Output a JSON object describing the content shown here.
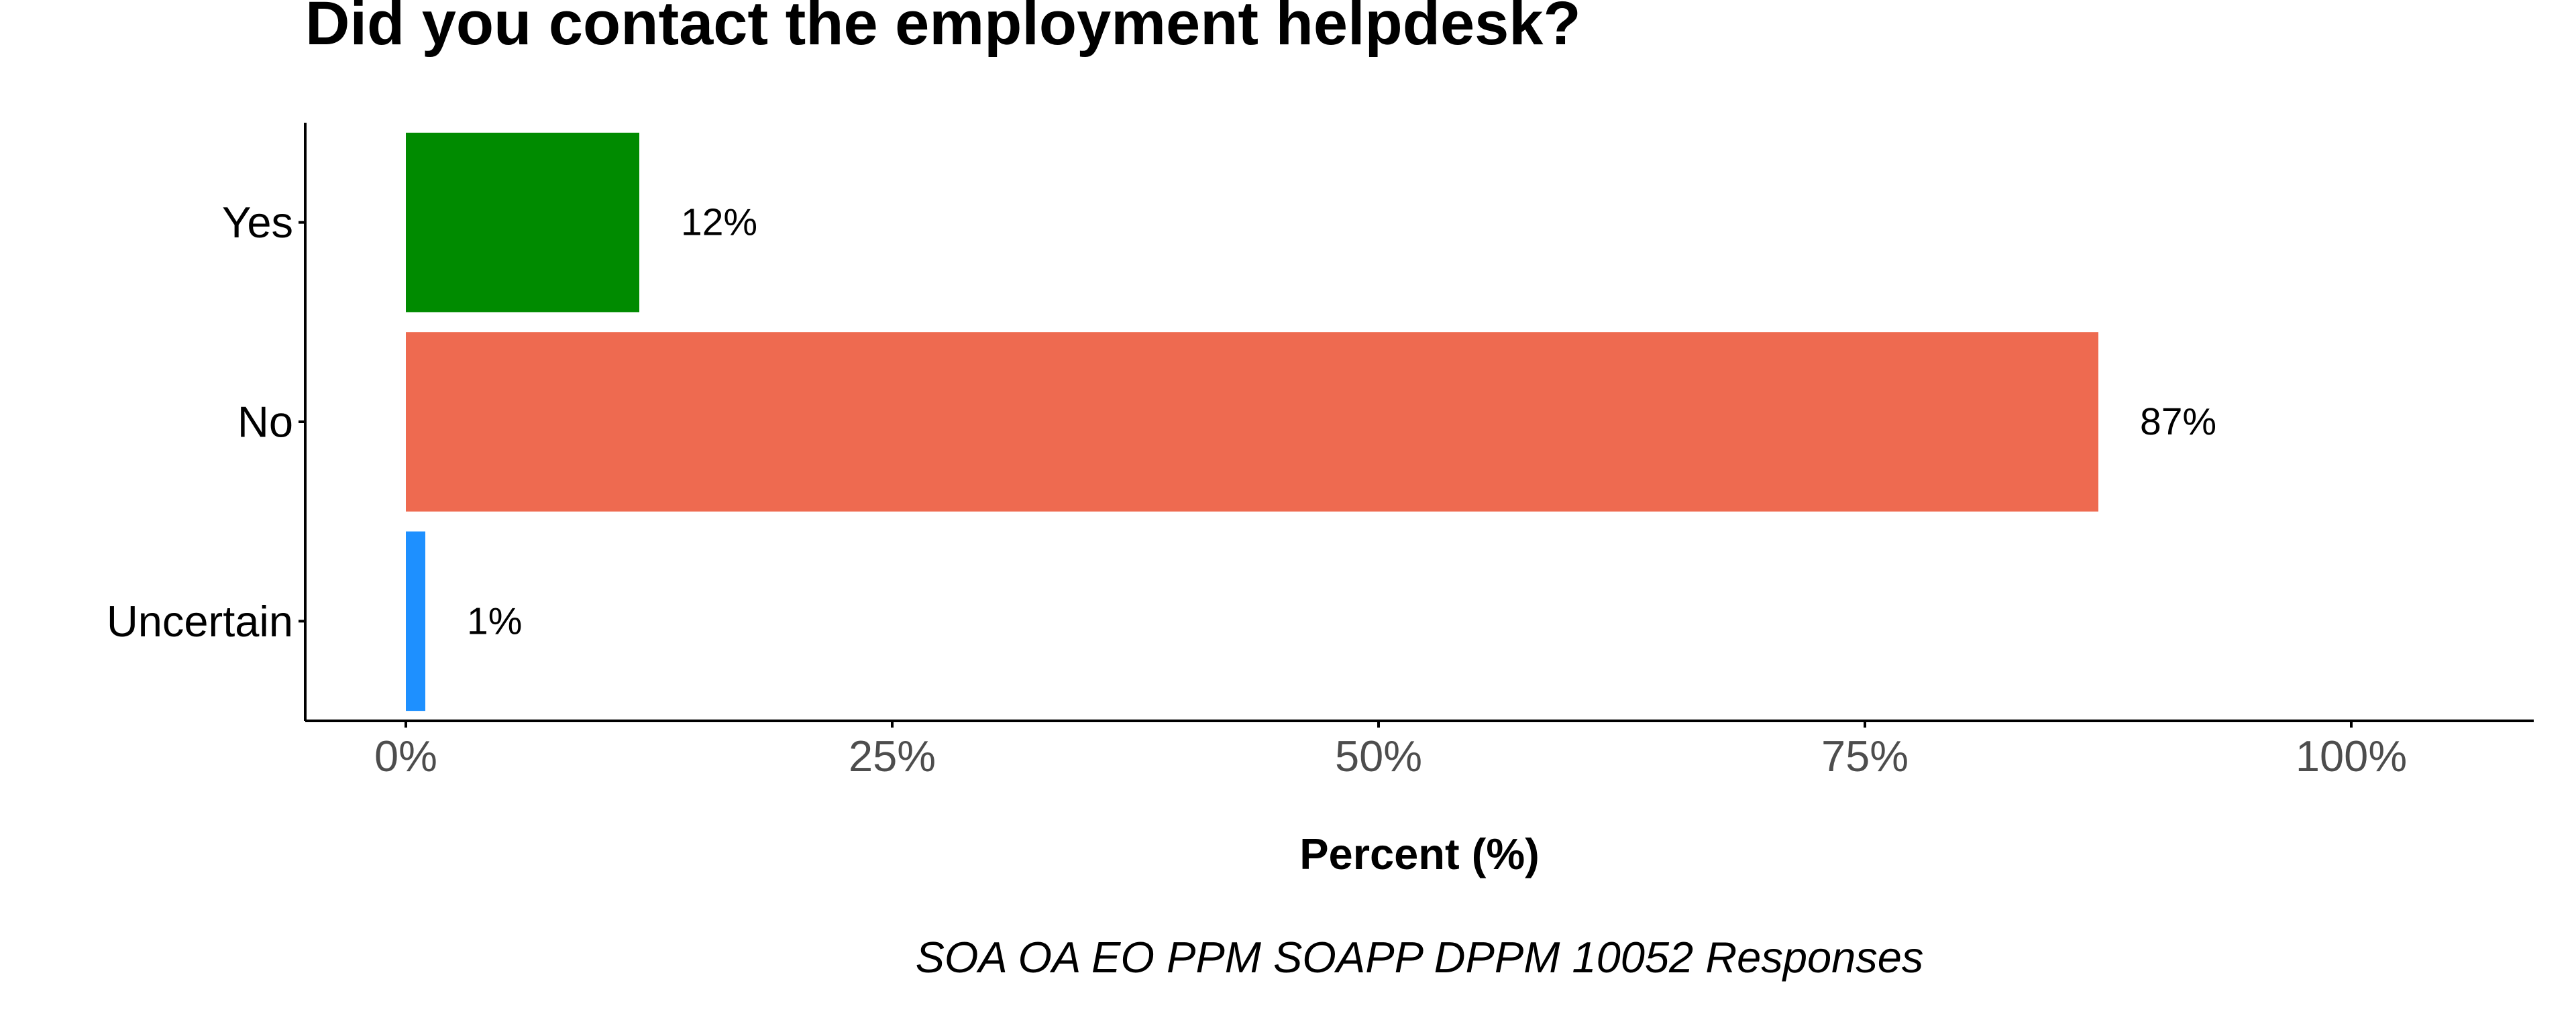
{
  "chart_data": {
    "type": "bar",
    "orientation": "horizontal",
    "title": "Did you contact the employment helpdesk?",
    "categories": [
      "Yes",
      "No",
      "Uncertain"
    ],
    "values": [
      12,
      87,
      1
    ],
    "value_labels": [
      "12%",
      "87%",
      "1%"
    ],
    "colors": [
      "#008B00",
      "#EE6A50",
      "#1E90FF"
    ],
    "xlabel": "Percent (%)",
    "ylabel": "",
    "xlim": [
      0,
      100
    ],
    "x_ticks": [
      0,
      25,
      50,
      75,
      100
    ],
    "x_tick_labels": [
      "0%",
      "25%",
      "50%",
      "75%",
      "100%"
    ],
    "caption": "SOA OA EO PPM SOAPP DPPM 10052 Responses",
    "grid": false,
    "legend": "none"
  }
}
